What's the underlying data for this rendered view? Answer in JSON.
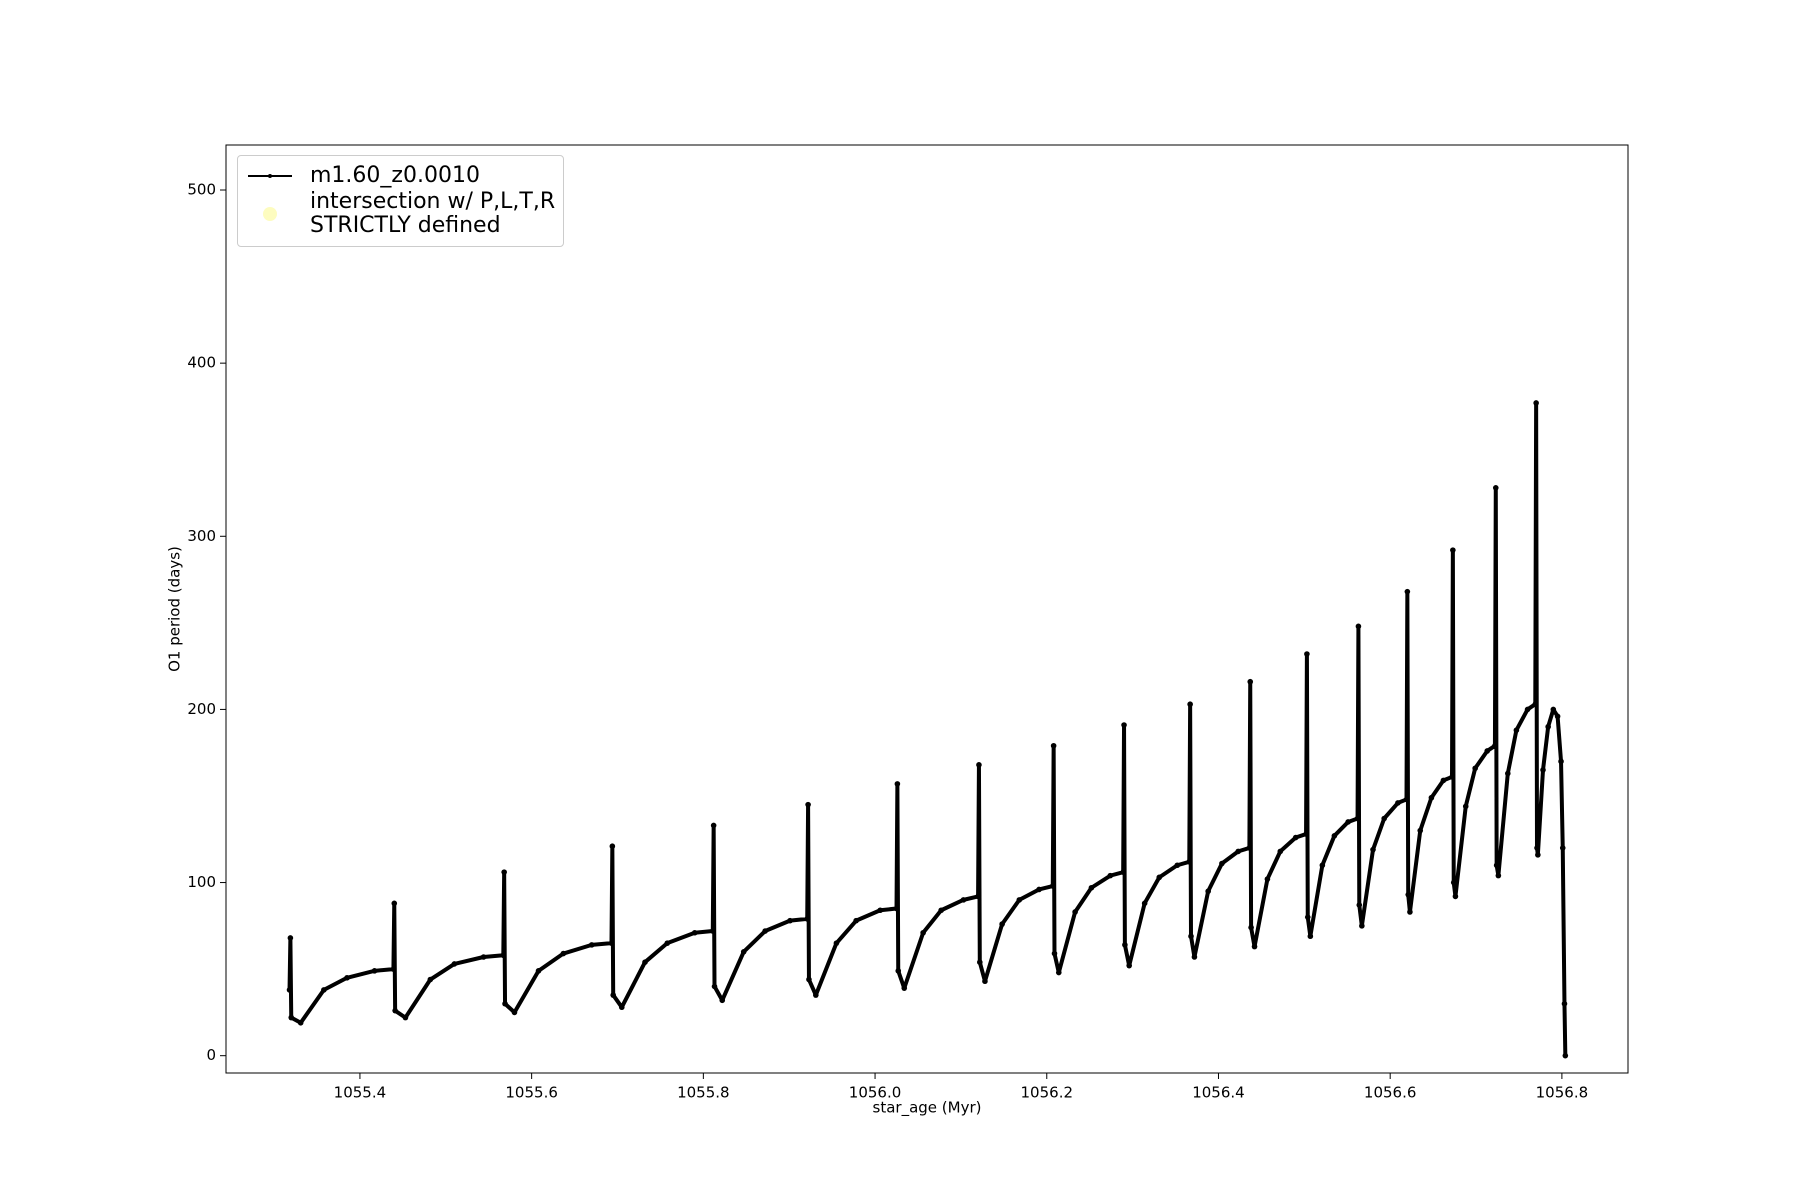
{
  "chart_data": {
    "type": "line",
    "xlabel": "star_age (Myr)",
    "ylabel": "O1 period (days)",
    "xlim": [
      1055.244,
      1056.877
    ],
    "ylim": [
      -10,
      526
    ],
    "xticks": [
      1055.4,
      1055.6,
      1055.8,
      {
        "value": 1056,
        "label": "1056.0"
      },
      1056.2,
      1056.4,
      1056.6,
      1056.8
    ],
    "yticks": [
      0,
      100,
      200,
      300,
      400,
      500
    ],
    "legend": "upper left",
    "series": [
      {
        "name": "m1.60_z0.0010",
        "color": "#000000",
        "x": [
          1055.318,
          1055.319,
          1055.32,
          1055.331,
          1055.358,
          1055.385,
          1055.417,
          1055.439,
          1055.44,
          1055.441,
          1055.453,
          1055.482,
          1055.51,
          1055.544,
          1055.567,
          1055.568,
          1055.569,
          1055.58,
          1055.608,
          1055.637,
          1055.67,
          1055.693,
          1055.694,
          1055.695,
          1055.705,
          1055.732,
          1055.758,
          1055.79,
          1055.811,
          1055.812,
          1055.813,
          1055.822,
          1055.847,
          1055.872,
          1055.901,
          1055.921,
          1055.922,
          1055.923,
          1055.931,
          1055.955,
          1055.978,
          1056.006,
          1056.025,
          1056.026,
          1056.027,
          1056.034,
          1056.056,
          1056.077,
          1056.103,
          1056.12,
          1056.121,
          1056.122,
          1056.128,
          1056.148,
          1056.168,
          1056.191,
          1056.207,
          1056.208,
          1056.209,
          1056.214,
          1056.233,
          1056.252,
          1056.274,
          1056.289,
          1056.29,
          1056.291,
          1056.296,
          1056.314,
          1056.331,
          1056.352,
          1056.366,
          1056.367,
          1056.368,
          1056.372,
          1056.388,
          1056.404,
          1056.423,
          1056.436,
          1056.437,
          1056.438,
          1056.442,
          1056.457,
          1056.472,
          1056.49,
          1056.502,
          1056.503,
          1056.504,
          1056.507,
          1056.521,
          1056.535,
          1056.551,
          1056.562,
          1056.563,
          1056.564,
          1056.567,
          1056.58,
          1056.593,
          1056.609,
          1056.619,
          1056.62,
          1056.621,
          1056.623,
          1056.635,
          1056.648,
          1056.662,
          1056.672,
          1056.673,
          1056.674,
          1056.676,
          1056.688,
          1056.699,
          1056.713,
          1056.722,
          1056.723,
          1056.724,
          1056.726,
          1056.737,
          1056.747,
          1056.76,
          1056.769,
          1056.77,
          1056.771,
          1056.772,
          1056.778,
          1056.784,
          1056.79,
          1056.795,
          1056.799,
          1056.801,
          1056.803,
          1056.804
        ],
        "values": [
          38,
          68,
          22,
          19,
          38,
          45,
          49,
          50,
          88,
          26,
          22,
          44,
          53,
          57,
          58,
          106,
          30,
          25,
          49,
          59,
          64,
          65,
          121,
          35,
          28,
          54,
          65,
          71,
          72,
          133,
          40,
          32,
          60,
          72,
          78,
          79,
          145,
          44,
          35,
          65,
          78,
          84,
          85,
          157,
          49,
          39,
          71,
          84,
          90,
          92,
          168,
          54,
          43,
          76,
          90,
          96,
          98,
          179,
          59,
          48,
          83,
          97,
          104,
          106,
          191,
          64,
          52,
          88,
          103,
          110,
          112,
          203,
          69,
          57,
          95,
          111,
          118,
          120,
          216,
          74,
          63,
          102,
          118,
          126,
          128,
          232,
          80,
          69,
          110,
          127,
          135,
          137,
          248,
          87,
          75,
          119,
          137,
          146,
          148,
          268,
          93,
          83,
          130,
          149,
          159,
          161,
          292,
          100,
          92,
          144,
          166,
          176,
          179,
          328,
          110,
          104,
          163,
          188,
          200,
          203,
          377,
          120,
          116,
          165,
          190,
          200,
          196,
          170,
          120,
          30,
          0
        ]
      },
      {
        "name": "intersection w/ P,L,T,R\nSTRICTLY defined",
        "color": "#fdfcbf",
        "x": [],
        "values": []
      }
    ]
  }
}
